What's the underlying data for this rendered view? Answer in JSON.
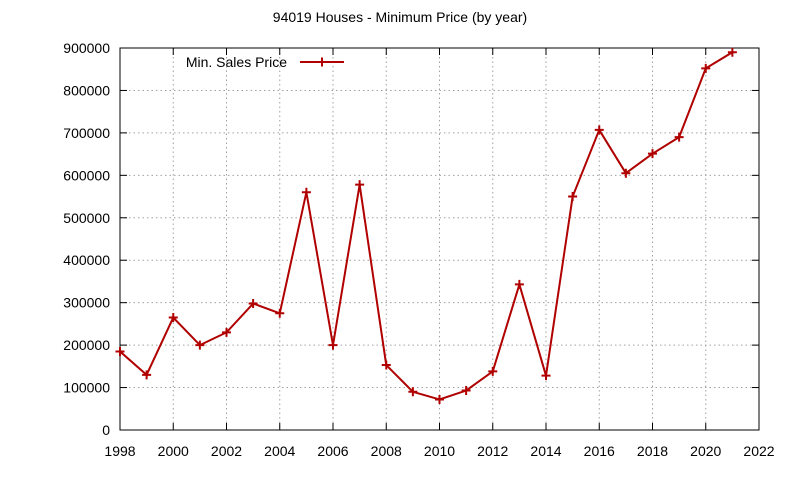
{
  "chart_data": {
    "type": "line",
    "title": "94019 Houses - Minimum Price (by year)",
    "xlabel": "",
    "ylabel": "",
    "xlim": [
      1998,
      2022
    ],
    "ylim": [
      0,
      900000
    ],
    "xticks": [
      1998,
      2000,
      2002,
      2004,
      2006,
      2008,
      2010,
      2012,
      2014,
      2016,
      2018,
      2020,
      2022
    ],
    "yticks": [
      0,
      100000,
      200000,
      300000,
      400000,
      500000,
      600000,
      700000,
      800000,
      900000
    ],
    "grid": true,
    "legend": "top-left",
    "series": [
      {
        "name": "Min. Sales Price",
        "color": "#b00000",
        "marker": "plus",
        "x": [
          1998,
          1999,
          2000,
          2001,
          2002,
          2003,
          2004,
          2005,
          2006,
          2007,
          2008,
          2009,
          2010,
          2011,
          2012,
          2013,
          2014,
          2015,
          2016,
          2017,
          2018,
          2019,
          2020,
          2021
        ],
        "y": [
          185000,
          130000,
          265000,
          200000,
          230000,
          298000,
          275000,
          560000,
          200000,
          578000,
          153000,
          90000,
          72000,
          93000,
          138000,
          343000,
          128000,
          550000,
          707000,
          605000,
          651000,
          690000,
          852000,
          890000
        ]
      }
    ]
  }
}
